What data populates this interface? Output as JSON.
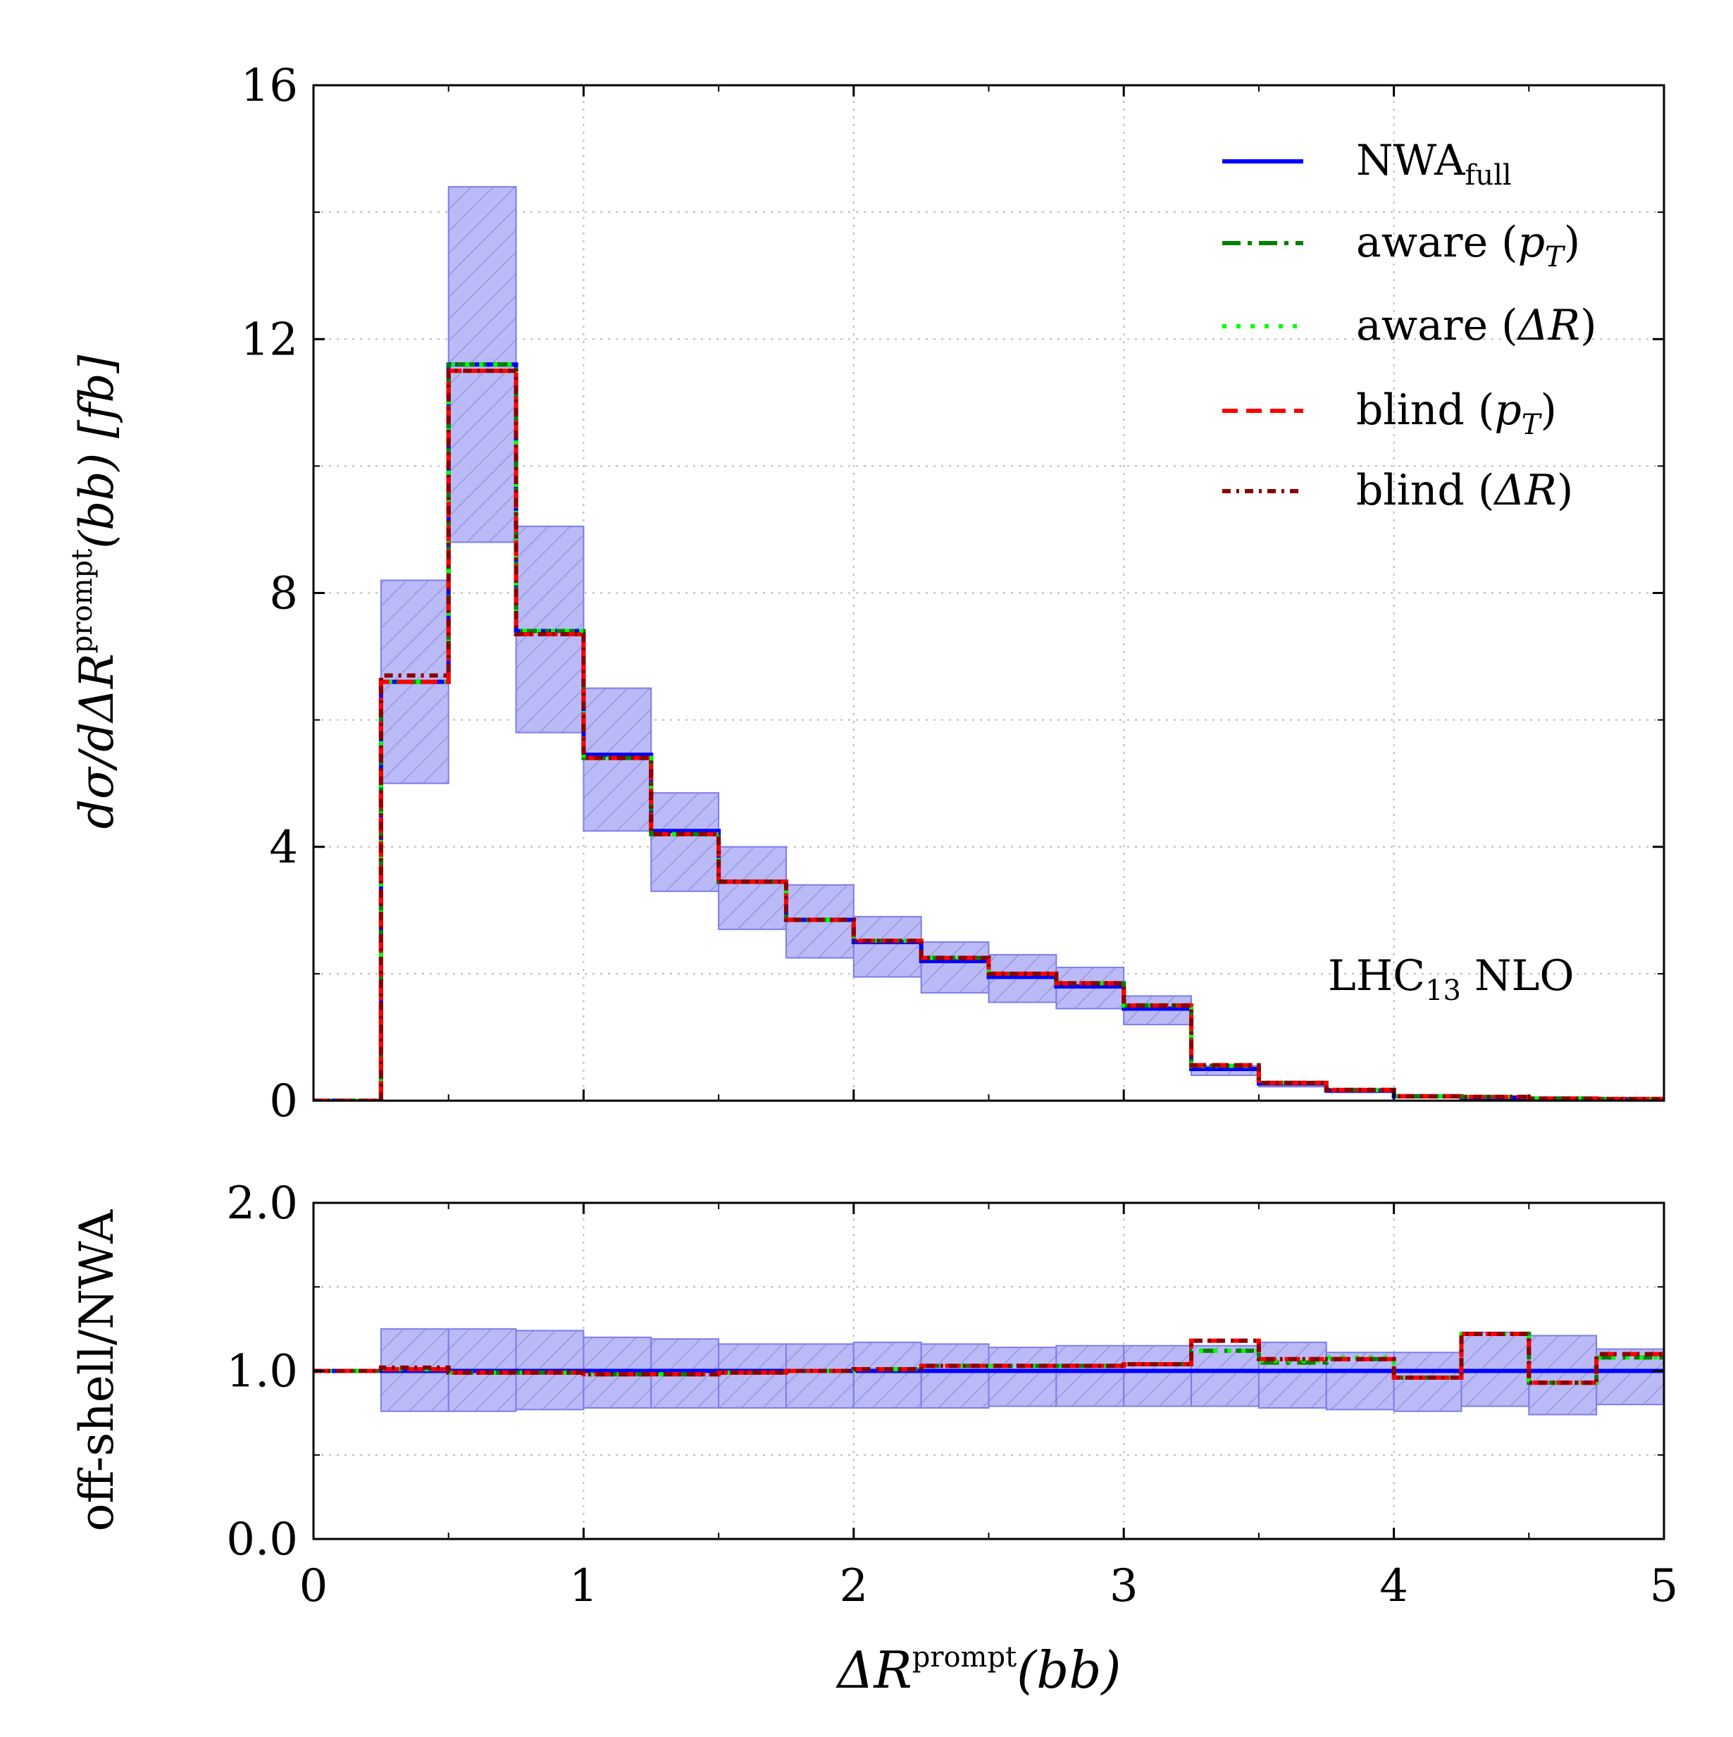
{
  "chart_data": [
    {
      "type": "line",
      "panel": "main",
      "xlabel": "ΔR",
      "xlabel_sup": "prompt",
      "xlabel_tail": "(bb)",
      "ylabel": "dσ/dΔR",
      "ylabel_sup": "prompt",
      "ylabel_tail": "(bb) [fb]",
      "xlim": [
        0,
        5
      ],
      "ylim": [
        0,
        16
      ],
      "yticks": [
        "0",
        "4",
        "8",
        "12",
        "16"
      ],
      "grid": true,
      "annotation": {
        "main": "LHC",
        "sub": "13",
        "tail": " NLO"
      },
      "bin_edges": [
        0,
        0.25,
        0.5,
        0.75,
        1.0,
        1.25,
        1.5,
        1.75,
        2.0,
        2.25,
        2.5,
        2.75,
        3.0,
        3.25,
        3.5,
        3.75,
        4.0,
        4.25,
        4.5,
        4.75,
        5.0
      ],
      "band": {
        "name": "NWA_full uncertainty",
        "low": [
          0,
          5.0,
          8.8,
          5.8,
          4.25,
          3.3,
          2.7,
          2.25,
          1.95,
          1.7,
          1.55,
          1.45,
          1.2,
          0.4,
          0.22,
          0.13,
          0.06,
          0.04,
          0.03,
          0.02
        ],
        "high": [
          0,
          8.2,
          14.4,
          9.05,
          6.5,
          4.85,
          4.0,
          3.4,
          2.9,
          2.5,
          2.3,
          2.1,
          1.65,
          0.55,
          0.3,
          0.18,
          0.09,
          0.06,
          0.04,
          0.03
        ]
      },
      "series": [
        {
          "name": "NWA",
          "sub": "full",
          "color": "#0000ff",
          "style": "solid",
          "values": [
            0,
            6.6,
            11.6,
            7.4,
            5.45,
            4.25,
            3.45,
            2.85,
            2.5,
            2.2,
            1.95,
            1.8,
            1.45,
            0.5,
            0.27,
            0.16,
            0.07,
            0.05,
            0.035,
            0.025
          ]
        },
        {
          "name": "aware (",
          "math": "p",
          "msub": "T",
          "tail": ")",
          "color": "#008000",
          "style": "dashdot",
          "values": [
            0,
            6.6,
            11.6,
            7.4,
            5.4,
            4.2,
            3.45,
            2.85,
            2.52,
            2.25,
            2.0,
            1.85,
            1.5,
            0.55,
            0.28,
            0.17,
            0.07,
            0.06,
            0.035,
            0.027
          ]
        },
        {
          "name": "aware (",
          "math": "ΔR",
          "msub": "",
          "tail": ")",
          "color": "#00ff00",
          "style": "dotted",
          "values": [
            0,
            6.6,
            11.6,
            7.4,
            5.4,
            4.2,
            3.45,
            2.85,
            2.52,
            2.25,
            2.0,
            1.85,
            1.5,
            0.55,
            0.28,
            0.17,
            0.07,
            0.06,
            0.035,
            0.027
          ]
        },
        {
          "name": "blind (",
          "math": "p",
          "msub": "T",
          "tail": ")",
          "color": "#ff0000",
          "style": "dashed",
          "values": [
            0,
            6.6,
            11.5,
            7.35,
            5.4,
            4.2,
            3.45,
            2.85,
            2.52,
            2.25,
            2.0,
            1.85,
            1.5,
            0.56,
            0.28,
            0.17,
            0.07,
            0.06,
            0.033,
            0.027
          ]
        },
        {
          "name": "blind (",
          "math": "ΔR",
          "msub": "",
          "tail": ")",
          "color": "#8b0000",
          "style": "densedot",
          "values": [
            0,
            6.7,
            11.5,
            7.35,
            5.4,
            4.2,
            3.45,
            2.85,
            2.52,
            2.25,
            2.0,
            1.85,
            1.5,
            0.56,
            0.28,
            0.17,
            0.07,
            0.06,
            0.033,
            0.027
          ]
        }
      ]
    },
    {
      "type": "line",
      "panel": "ratio",
      "ylabel": "off-shell/NWA",
      "xlim": [
        0,
        5
      ],
      "ylim": [
        0,
        2
      ],
      "xticks": [
        "0",
        "1",
        "2",
        "3",
        "4",
        "5"
      ],
      "yticks": [
        "0.0",
        "1.0",
        "2.0"
      ],
      "grid": true,
      "bin_edges": [
        0,
        0.25,
        0.5,
        0.75,
        1.0,
        1.25,
        1.5,
        1.75,
        2.0,
        2.25,
        2.5,
        2.75,
        3.0,
        3.25,
        3.5,
        3.75,
        4.0,
        4.25,
        4.5,
        4.75,
        5.0
      ],
      "band": {
        "low": [
          1.0,
          0.76,
          0.76,
          0.77,
          0.78,
          0.78,
          0.78,
          0.78,
          0.78,
          0.78,
          0.79,
          0.79,
          0.79,
          0.79,
          0.78,
          0.77,
          0.76,
          0.79,
          0.74,
          0.8
        ],
        "high": [
          1.0,
          1.25,
          1.25,
          1.24,
          1.2,
          1.19,
          1.16,
          1.16,
          1.17,
          1.16,
          1.14,
          1.15,
          1.15,
          1.15,
          1.17,
          1.11,
          1.11,
          1.23,
          1.21,
          1.13
        ]
      },
      "series": [
        {
          "name": "NWA_full",
          "color": "#0000ff",
          "style": "solid",
          "values": [
            1,
            1,
            1,
            1,
            1,
            1,
            1,
            1,
            1,
            1,
            1,
            1,
            1,
            1,
            1,
            1,
            1,
            1,
            1,
            1
          ]
        },
        {
          "name": "aware (pT)",
          "color": "#008000",
          "style": "dashdot",
          "values": [
            1,
            1.01,
            0.99,
            0.99,
            0.98,
            0.98,
            0.99,
            1.0,
            1.01,
            1.03,
            1.03,
            1.03,
            1.04,
            1.12,
            1.05,
            1.07,
            0.96,
            1.22,
            0.93,
            1.08
          ]
        },
        {
          "name": "aware (ΔR)",
          "color": "#00ff00",
          "style": "dotted",
          "values": [
            1,
            1.01,
            0.99,
            0.99,
            0.98,
            0.98,
            0.99,
            1.0,
            1.01,
            1.03,
            1.03,
            1.03,
            1.04,
            1.12,
            1.06,
            1.08,
            0.96,
            1.22,
            0.93,
            1.08
          ]
        },
        {
          "name": "blind (pT)",
          "color": "#ff0000",
          "style": "dashed",
          "values": [
            1,
            1.01,
            0.99,
            0.99,
            0.98,
            0.98,
            0.99,
            1.0,
            1.01,
            1.03,
            1.03,
            1.03,
            1.04,
            1.18,
            1.07,
            1.07,
            0.96,
            1.22,
            0.93,
            1.1
          ]
        },
        {
          "name": "blind (ΔR)",
          "color": "#8b0000",
          "style": "densedot",
          "values": [
            1,
            1.02,
            0.99,
            0.99,
            0.98,
            0.98,
            0.99,
            1.0,
            1.01,
            1.03,
            1.03,
            1.03,
            1.04,
            1.18,
            1.07,
            1.07,
            0.96,
            1.22,
            0.93,
            1.1
          ]
        }
      ]
    }
  ]
}
